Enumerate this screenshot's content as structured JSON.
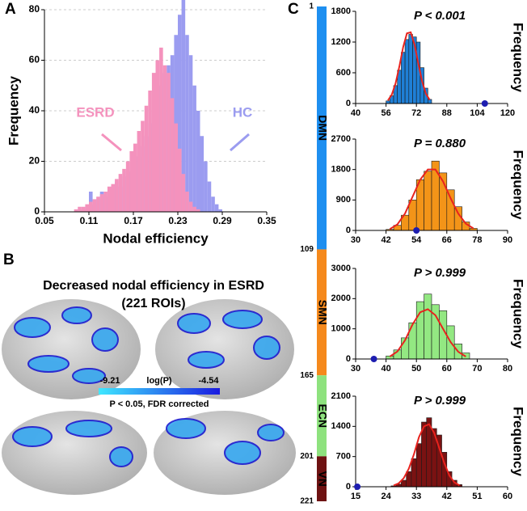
{
  "panel_labels": [
    "A",
    "B",
    "C"
  ],
  "chart_data": [
    {
      "type": "histogram",
      "xlabel": "Nodal efficiency",
      "ylabel": "Frequency",
      "bins": [
        0.07,
        0.075,
        0.08,
        0.085,
        0.09,
        0.095,
        0.1,
        0.105,
        0.11,
        0.115,
        0.12,
        0.125,
        0.13,
        0.135,
        0.14,
        0.145,
        0.15,
        0.155,
        0.16,
        0.165,
        0.17,
        0.175,
        0.18,
        0.185,
        0.19,
        0.195,
        0.2,
        0.205,
        0.21,
        0.215,
        0.22,
        0.225,
        0.23,
        0.235,
        0.24,
        0.245,
        0.25,
        0.255,
        0.26,
        0.265,
        0.27,
        0.275,
        0.28,
        0.285,
        0.29,
        0.295,
        0.3
      ],
      "series": [
        {
          "name": "HC",
          "color": "#9b9cf0",
          "values": [
            0,
            0,
            0,
            0,
            0,
            1,
            1,
            2,
            8,
            3,
            5,
            8,
            6,
            8,
            10,
            12,
            10,
            14,
            16,
            18,
            20,
            22,
            26,
            30,
            35,
            40,
            44,
            50,
            55,
            58,
            62,
            70,
            78,
            84,
            70,
            62,
            50,
            40,
            30,
            20,
            12,
            6,
            3,
            1,
            0,
            0
          ]
        },
        {
          "name": "ESRD",
          "color": "#f492bd",
          "values": [
            0,
            0,
            0,
            0,
            1,
            2,
            2,
            3,
            4,
            5,
            6,
            7,
            8,
            10,
            11,
            13,
            15,
            17,
            20,
            24,
            27,
            32,
            36,
            42,
            48,
            55,
            60,
            65,
            58,
            55,
            45,
            35,
            25,
            15,
            8,
            4,
            2,
            1,
            0,
            0,
            0,
            0,
            0,
            0,
            0,
            0
          ]
        }
      ],
      "xlim": [
        0.05,
        0.35
      ],
      "xticks": [
        0.05,
        0.11,
        0.17,
        0.23,
        0.29,
        0.35
      ],
      "ylim": [
        0,
        80
      ],
      "yticks": [
        0,
        20,
        40,
        60,
        80
      ],
      "grid": true
    },
    {
      "type": "histogram",
      "ylabel": "Frequency",
      "annotation": "P < 0.001",
      "edgecolor": "#1a1a1a",
      "bins": [
        56,
        58,
        60,
        62,
        64,
        66,
        68,
        70,
        72,
        74,
        76,
        78,
        80
      ],
      "series": [
        {
          "color": "#1f7fd6",
          "values": [
            50,
            150,
            350,
            650,
            1000,
            1250,
            1350,
            1300,
            1200,
            700,
            300,
            80
          ]
        }
      ],
      "fit": {
        "color": "#e8231e",
        "x": [
          57,
          59,
          61,
          63,
          65,
          67,
          69,
          71,
          73,
          75,
          77,
          79
        ],
        "values": [
          60,
          170,
          390,
          720,
          1100,
          1370,
          1390,
          1150,
          780,
          430,
          190,
          70
        ]
      },
      "observed": {
        "x": 108,
        "y": 0,
        "color": "#1d1db0"
      },
      "xlim": [
        40,
        120
      ],
      "xticks": [
        40,
        56,
        72,
        88,
        104,
        120
      ],
      "ylim": [
        0,
        1800
      ],
      "yticks": [
        0,
        600,
        1200,
        1800
      ]
    },
    {
      "type": "histogram",
      "ylabel": "Frequency",
      "annotation": "P = 0.880",
      "edgecolor": "#1a1a1a",
      "bins": [
        42,
        45,
        48,
        51,
        54,
        57,
        60,
        63,
        66,
        69,
        72,
        75,
        78
      ],
      "series": [
        {
          "color": "#f39418",
          "values": [
            30,
            150,
            450,
            900,
            1500,
            1750,
            2050,
            1700,
            1200,
            700,
            250,
            60
          ]
        }
      ],
      "fit": {
        "color": "#e8231e",
        "x": [
          43.5,
          46.5,
          49.5,
          52.5,
          55.5,
          58.5,
          61.5,
          64.5,
          67.5,
          70.5,
          73.5,
          76.5
        ],
        "values": [
          40,
          180,
          500,
          1000,
          1500,
          1800,
          1800,
          1450,
          950,
          500,
          200,
          60
        ]
      },
      "observed": {
        "x": 54,
        "y": 0,
        "color": "#1d1db0"
      },
      "xlim": [
        30,
        90
      ],
      "xticks": [
        30,
        42,
        54,
        66,
        78,
        90
      ],
      "ylim": [
        0,
        2700
      ],
      "yticks": [
        0,
        900,
        1800,
        2700
      ]
    },
    {
      "type": "histogram",
      "ylabel": "Frequency",
      "annotation": "P > 0.999",
      "edgecolor": "#1a1a1a",
      "bins": [
        40,
        42.5,
        45,
        47.5,
        50,
        52.5,
        55,
        57.5,
        60,
        62.5,
        65,
        67.5
      ],
      "series": [
        {
          "color": "#93e882",
          "values": [
            100,
            300,
            700,
            1200,
            1900,
            2150,
            1800,
            1600,
            1100,
            500,
            200
          ]
        }
      ],
      "fit": {
        "color": "#e8231e",
        "x": [
          41.25,
          43.75,
          46.25,
          48.75,
          51.25,
          53.75,
          56.25,
          58.75,
          61.25,
          63.75,
          66.25
        ],
        "values": [
          80,
          250,
          620,
          1150,
          1550,
          1650,
          1450,
          1000,
          560,
          240,
          80
        ]
      },
      "observed": {
        "x": 36,
        "y": 0,
        "color": "#1d1db0"
      },
      "xlim": [
        30,
        80
      ],
      "xticks": [
        30,
        40,
        50,
        60,
        70,
        80
      ],
      "ylim": [
        0,
        3000
      ],
      "yticks": [
        0,
        1000,
        2000,
        3000
      ]
    },
    {
      "type": "histogram",
      "ylabel": "Frequency",
      "annotation": "P > 0.999",
      "edgecolor": "#1a1a1a",
      "bins": [
        25.5,
        27,
        28.5,
        30,
        31.5,
        33,
        34.5,
        36,
        37.5,
        39,
        40.5,
        42,
        43.5,
        45,
        46.5
      ],
      "series": [
        {
          "color": "#7a1212",
          "values": [
            20,
            60,
            150,
            350,
            650,
            1000,
            1500,
            1600,
            1350,
            1200,
            800,
            350,
            150,
            50
          ]
        }
      ],
      "fit": {
        "color": "#e8231e",
        "x": [
          26.25,
          27.75,
          29.25,
          30.75,
          32.25,
          33.75,
          35.25,
          36.75,
          38.25,
          39.75,
          41.25,
          42.75,
          44.25,
          45.75
        ],
        "values": [
          30,
          80,
          200,
          420,
          750,
          1150,
          1400,
          1450,
          1250,
          900,
          550,
          260,
          100,
          30
        ]
      },
      "observed": {
        "x": 15.5,
        "y": 0,
        "color": "#1d1db0"
      },
      "xlim": [
        15,
        60
      ],
      "xticks": [
        15,
        24,
        33,
        42,
        51,
        60
      ],
      "ylim": [
        0,
        2100
      ],
      "yticks": [
        0,
        700,
        1400,
        2100
      ]
    }
  ],
  "networks": {
    "bounds": [
      1,
      109,
      165,
      201,
      221
    ],
    "names": [
      "DMN",
      "SMN",
      "ECN",
      "VN"
    ],
    "colors": [
      "#1e8ff0",
      "#f5891c",
      "#8ee27e",
      "#6e1212"
    ]
  },
  "brain_map": {
    "title": "Decreased nodal efficiency in ESRD",
    "subtitle": "(221 ROIs)",
    "colorbar": {
      "min": -9.21,
      "label": "log(P)",
      "max": -4.54
    },
    "note": "P < 0.05, FDR corrected"
  }
}
